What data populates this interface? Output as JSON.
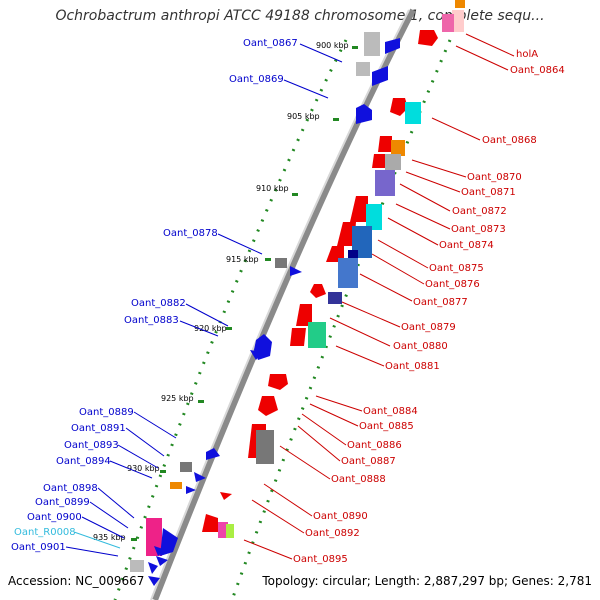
{
  "title": "Ochrobactrum anthropi ATCC 49188 chromosome 1, complete sequ...",
  "accession": "Accession: NC_009667",
  "topology": "Topology: circular; Length: 2,887,297 bp; Genes: 2,781",
  "kbp_ticks": [
    "900 kbp",
    "905 kbp",
    "910 kbp",
    "915 kbp",
    "920 kbp",
    "925 kbp",
    "930 kbp",
    "935 kbp"
  ],
  "left_labels": [
    "Oant_0867",
    "Oant_0869",
    "Oant_0878",
    "Oant_0882",
    "Oant_0883",
    "Oant_0889",
    "Oant_0891",
    "Oant_0893",
    "Oant_0894",
    "Oant_0898",
    "Oant_0899",
    "Oant_0900",
    "Oant_R0008",
    "Oant_0901"
  ],
  "right_labels": [
    "holA",
    "Oant_0864",
    "Oant_0868",
    "Oant_0870",
    "Oant_0871",
    "Oant_0872",
    "Oant_0873",
    "Oant_0874",
    "Oant_0875",
    "Oant_0876",
    "Oant_0877",
    "Oant_0879",
    "Oant_0880",
    "Oant_0881",
    "Oant_0884",
    "Oant_0885",
    "Oant_0886",
    "Oant_0887",
    "Oant_0888",
    "Oant_0890",
    "Oant_0892",
    "Oant_0895"
  ],
  "colors": {
    "left_label": "#0000cc",
    "right_label": "#cc0000",
    "rna_label": "#33bbdd",
    "backbone": "#999999",
    "tick": "#228822"
  }
}
